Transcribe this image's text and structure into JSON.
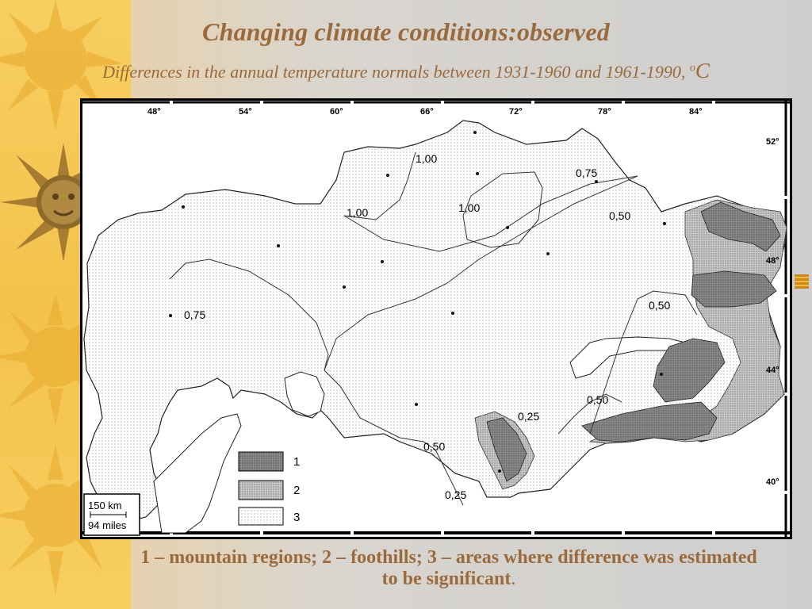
{
  "slide": {
    "title": "Changing climate conditions:observed",
    "subtitle_text": "Differences in the annual temperature normals between 1931-1960 and 1961-1990, ",
    "subtitle_unit_sup": "o",
    "subtitle_unit": "C",
    "caption_main": "1 – mountain regions; 2 – foothills; 3 – areas where difference was estimated to be significant",
    "caption_end": "."
  },
  "map": {
    "longitude_labels": [
      "48°",
      "54°",
      "60°",
      "66°",
      "72°",
      "78°",
      "84°"
    ],
    "latitude_labels": [
      "52°",
      "48°",
      "44°",
      "40°"
    ],
    "isoline_labels": [
      "1,00",
      "1,00",
      "1,00",
      "0,75",
      "0,50",
      "0,75",
      "0,50",
      "0,50",
      "0,25",
      "0,50",
      "0,25"
    ],
    "legend": {
      "items": [
        {
          "label": "1"
        },
        {
          "label": "2"
        },
        {
          "label": "3"
        }
      ]
    },
    "scale": {
      "km_label": "150 km",
      "miles_label": "94 miles"
    },
    "colors": {
      "mountain": "#8a8a8a",
      "foothills": "#c4c4c4",
      "significant": "#e7e7e7"
    }
  },
  "decor": {
    "left_strip_color": "#f3c24c",
    "title_color": "#9a6a3c",
    "sun_icons": [
      "sun-icon",
      "sun-face-icon",
      "sun-icon",
      "sun-icon"
    ]
  }
}
